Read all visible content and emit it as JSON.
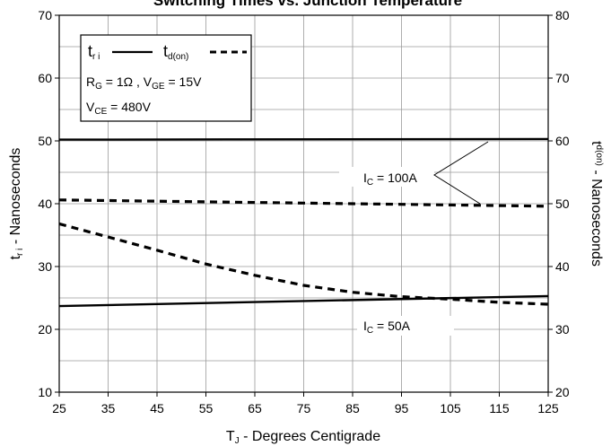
{
  "chart_data": {
    "type": "line",
    "title": "Switching Times vs. Junction Temperature",
    "xlabel": {
      "main": "T",
      "sub": "J",
      "rest": " - Degrees Centigrade"
    },
    "ylabel_left": {
      "main": "t",
      "sub": "r i",
      "rest": " - Nanoseconds"
    },
    "ylabel_right": {
      "main": "t",
      "sub": "d(on)",
      "rest": " - Nanoseconds"
    },
    "xlim": [
      25,
      125
    ],
    "ylim_left": [
      10,
      70
    ],
    "ylim_right": [
      20,
      80
    ],
    "x_ticks": [
      25,
      35,
      45,
      55,
      65,
      75,
      85,
      95,
      105,
      115,
      125
    ],
    "y_ticks_left": [
      10,
      20,
      30,
      40,
      50,
      60,
      70
    ],
    "y_ticks_right": [
      20,
      30,
      40,
      50,
      60,
      70,
      80
    ],
    "grid": true,
    "legend": {
      "tri_main": "t",
      "tri_sub": "r i",
      "tdon_main": "t",
      "tdon_sub": "d(on)",
      "cond1_a": "R",
      "cond1_a_sub": "G",
      "cond1_b": " = 1Ω , V",
      "cond1_b_sub": "GE",
      "cond1_c": " = 15V",
      "cond2_a": "V",
      "cond2_a_sub": "CE",
      "cond2_b": " = 480V"
    },
    "annotations": {
      "ic100_main": "I",
      "ic100_sub": "C",
      "ic100_rest": " = 100A",
      "ic50_main": "I",
      "ic50_sub": "C",
      "ic50_rest": " = 50A"
    },
    "series": [
      {
        "metric": "t_ri",
        "condition": "IC = 100A",
        "axis": "left",
        "style": "solid",
        "x": [
          25,
          125
        ],
        "y": [
          50.2,
          50.3
        ]
      },
      {
        "metric": "t_d(on)",
        "condition": "IC = 100A",
        "axis": "right",
        "style": "dashed",
        "x": [
          25,
          35,
          45,
          55,
          65,
          75,
          85,
          95,
          105,
          115,
          125
        ],
        "y": [
          50.6,
          50.5,
          50.4,
          50.3,
          50.2,
          50.1,
          50.0,
          49.9,
          49.8,
          49.7,
          49.6
        ]
      },
      {
        "metric": "t_ri",
        "condition": "IC = 50A",
        "axis": "left",
        "style": "solid",
        "x": [
          25,
          125
        ],
        "y": [
          23.7,
          25.3
        ]
      },
      {
        "metric": "t_d(on)",
        "condition": "IC = 50A",
        "axis": "right",
        "style": "dashed",
        "x": [
          25,
          35,
          45,
          55,
          65,
          75,
          85,
          95,
          105,
          115,
          125
        ],
        "y": [
          46.8,
          44.7,
          42.6,
          40.4,
          38.6,
          37.0,
          35.9,
          35.2,
          34.8,
          34.3,
          34.0
        ]
      }
    ]
  }
}
